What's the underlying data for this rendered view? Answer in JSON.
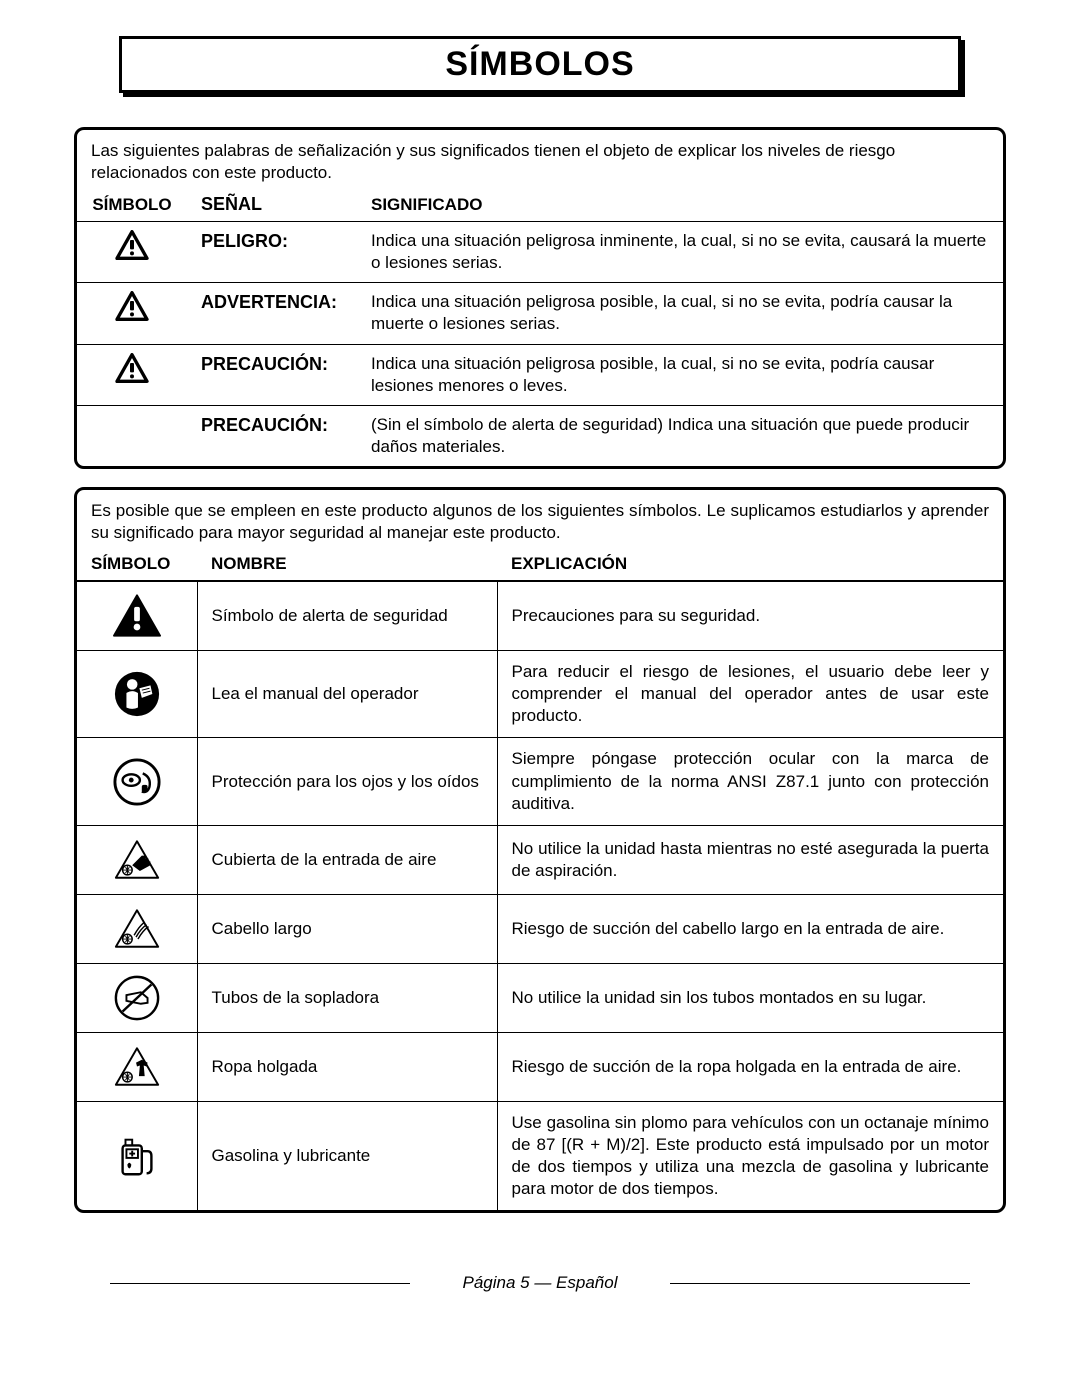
{
  "title": "SÍMBOLOS",
  "box1": {
    "intro": "Las siguientes palabras de señalización y sus significados tienen el objeto de explicar los niveles de riesgo relacionados con este producto.",
    "headers": {
      "symbol": "SÍMBOLO",
      "signal": "SEÑAL",
      "meaning": "SIGNIFICADO"
    },
    "rows": [
      {
        "icon": "alert",
        "signal": "PELIGRO:",
        "meaning": "Indica una situación peligrosa inminente, la cual, si no se evita, causará la muerte o lesiones serias."
      },
      {
        "icon": "alert",
        "signal": "ADVERTENCIA:",
        "meaning": "Indica una situación peligrosa posible, la cual, si no se evita, podría causar la muerte o lesiones serias."
      },
      {
        "icon": "alert",
        "signal": "PRECAUCIÓN:",
        "meaning": "Indica una situación peligrosa posible, la cual, si no se evita, podría causar lesiones menores o leves."
      },
      {
        "icon": "",
        "signal": "PRECAUCIÓN:",
        "meaning": "(Sin el símbolo de alerta de seguridad) Indica una situación que puede producir daños materiales."
      }
    ]
  },
  "box2": {
    "intro": "Es posible que se empleen en este producto algunos de los siguientes símbolos. Le suplicamos estudiarlos y aprender su significado para mayor seguridad al manejar este producto.",
    "headers": {
      "symbol": "SÍMBOLO",
      "name": "NOMBRE",
      "explanation": "EXPLICACIÓN"
    },
    "rows": [
      {
        "icon": "alert-solid",
        "name": "Símbolo de alerta de seguridad",
        "explanation": "Precauciones para su seguridad."
      },
      {
        "icon": "read-manual",
        "name": "Lea el manual del operador",
        "explanation": "Para reducir el riesgo de lesiones, el usuario debe leer y comprender el manual del operador antes de usar este producto."
      },
      {
        "icon": "eye-ear",
        "name": "Protección para los ojos y los oídos",
        "explanation": "Siempre póngase protección ocular con la marca de cumplimiento de la norma ANSI Z87.1 junto con protección auditiva."
      },
      {
        "icon": "inlet-hand",
        "name": "Cubierta de la entrada de aire",
        "explanation": "No utilice la unidad hasta mientras no esté asegurada la puerta de aspiración."
      },
      {
        "icon": "long-hair",
        "name": "Cabello largo",
        "explanation": "Riesgo de succión del cabello largo en la entrada de aire."
      },
      {
        "icon": "tubes",
        "name": "Tubos de la sopladora",
        "explanation": "No utilice la unidad sin los tubos montados en su lugar."
      },
      {
        "icon": "loose-clothes",
        "name": "Ropa holgada",
        "explanation": "Riesgo de succión de la ropa holgada en la entrada de aire."
      },
      {
        "icon": "fuel",
        "name": "Gasolina y lubricante",
        "explanation": "Use gasolina sin plomo para vehículos con un octanaje mínimo de 87 [(R + M)/2]. Este producto está impulsado por un motor de dos tiempos y utiliza una mezcla de gasolina y lubricante para motor de dos tiempos."
      }
    ]
  },
  "footer": "Página 5 — Español"
}
